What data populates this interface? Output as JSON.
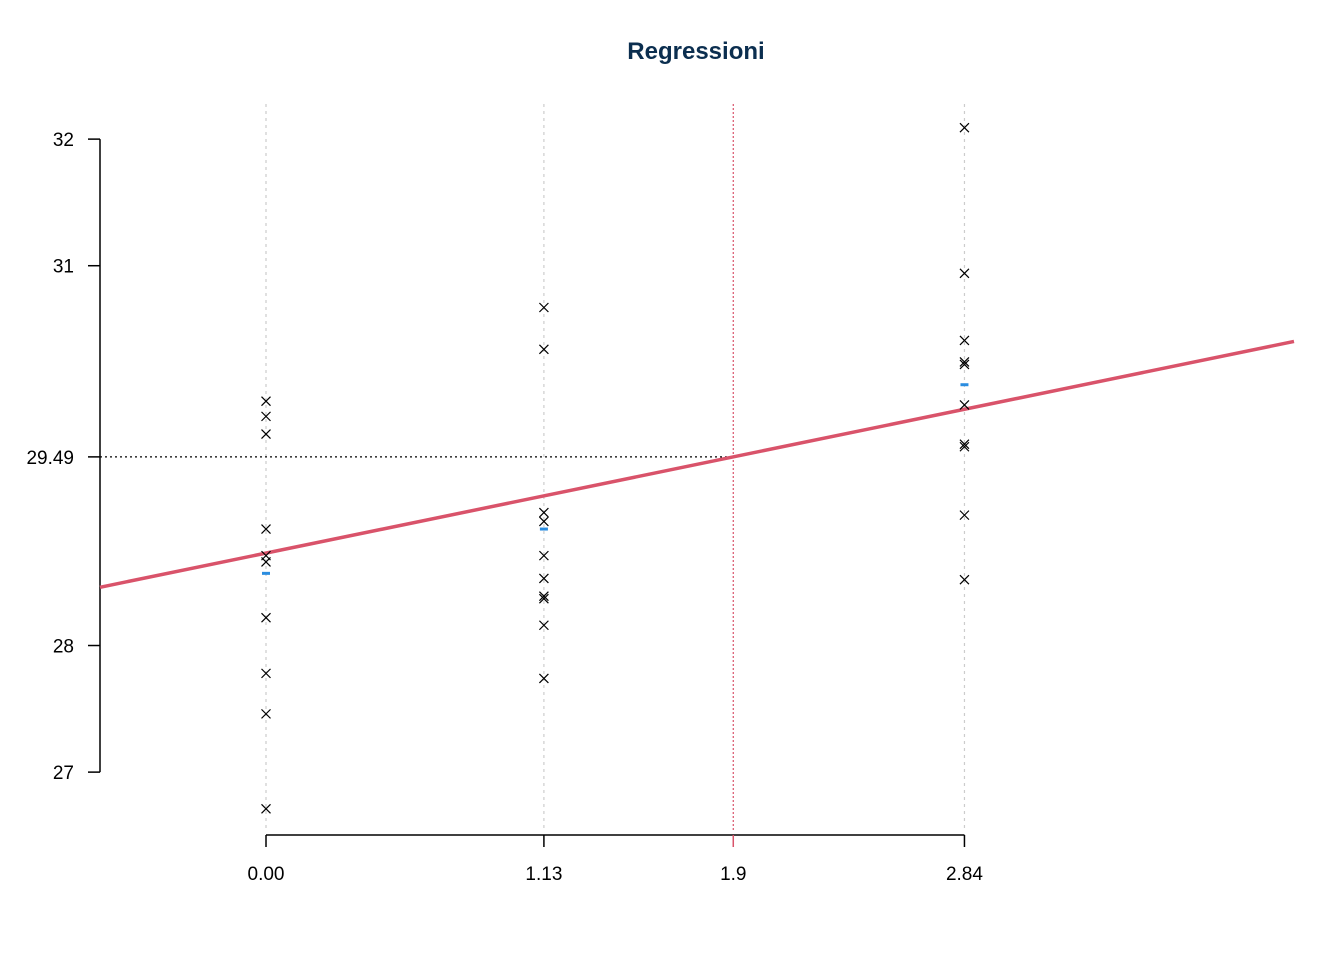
{
  "chart_data": {
    "type": "scatter",
    "title": "Regressioni",
    "xlabel": "",
    "ylabel": "",
    "x_ticks": [
      0.0,
      1.13,
      1.9,
      2.84
    ],
    "x_tick_labels": [
      "0.00",
      "1.13",
      "1.9",
      "2.84"
    ],
    "y_ticks": [
      27,
      28,
      29.49,
      31,
      32
    ],
    "y_tick_labels": [
      "27",
      "28",
      "29.49",
      "31",
      "32"
    ],
    "xlim": [
      -0.675,
      4.18
    ],
    "ylim": [
      26.5,
      32.3
    ],
    "grid": false,
    "groups": [
      {
        "x": 0.0,
        "y": [
          29.93,
          29.81,
          29.67,
          28.92,
          28.71,
          28.66,
          28.22,
          27.78,
          27.46,
          26.71
        ],
        "mean": 28.57
      },
      {
        "x": 1.13,
        "y": [
          30.67,
          30.34,
          29.05,
          28.98,
          28.71,
          28.53,
          28.39,
          28.37,
          28.16,
          27.74
        ],
        "mean": 28.92
      },
      {
        "x": 2.84,
        "y": [
          32.09,
          30.94,
          30.41,
          30.24,
          30.22,
          29.9,
          29.59,
          29.57,
          29.03,
          28.52
        ],
        "mean": 30.06
      }
    ],
    "regression_line": {
      "intercept": 28.73,
      "slope": 0.4
    },
    "reference_point": {
      "x": 1.9,
      "y": 29.49
    },
    "colors": {
      "title": "#0b2e4f",
      "regression": "#d9536a",
      "mean_marker": "#2b8de0",
      "points": "#000000",
      "group_lines": "#cccccc",
      "reference_x": "#d9536a",
      "reference_y": "#000000"
    }
  }
}
